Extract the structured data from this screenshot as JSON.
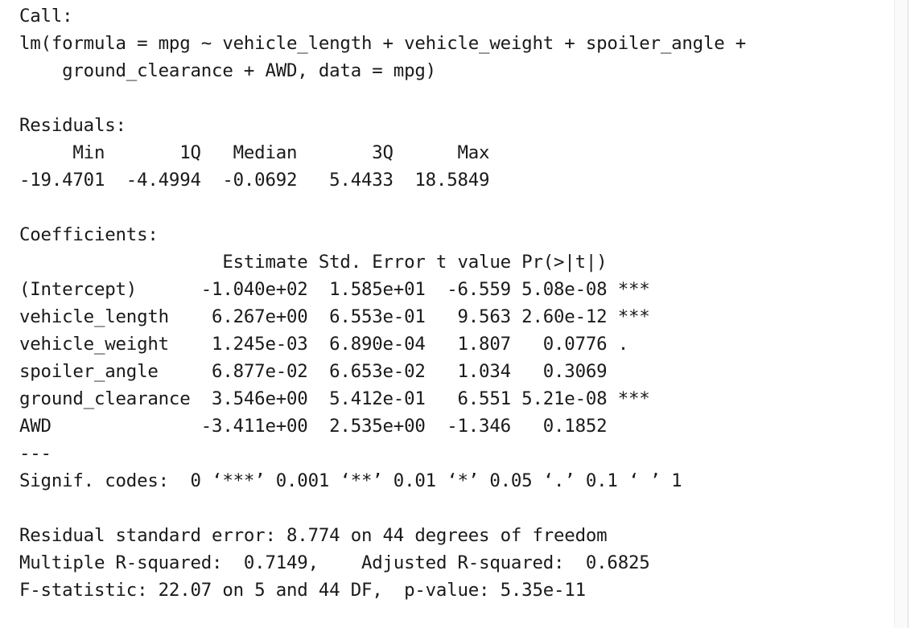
{
  "console": {
    "lines": [
      "Call:",
      "lm(formula = mpg ~ vehicle_length + vehicle_weight + spoiler_angle + ",
      "    ground_clearance + AWD, data = mpg)",
      "",
      "Residuals:",
      "     Min       1Q   Median       3Q      Max ",
      "-19.4701  -4.4994  -0.0692   5.4433  18.5849 ",
      "",
      "Coefficients:",
      "                   Estimate Std. Error t value Pr(>|t|)    ",
      "(Intercept)      -1.040e+02  1.585e+01  -6.559 5.08e-08 ***",
      "vehicle_length    6.267e+00  6.553e-01   9.563 2.60e-12 ***",
      "vehicle_weight    1.245e-03  6.890e-04   1.807   0.0776 .  ",
      "spoiler_angle     6.877e-02  6.653e-02   1.034   0.3069    ",
      "ground_clearance  3.546e+00  5.412e-01   6.551 5.21e-08 ***",
      "AWD              -3.411e+00  2.535e+00  -1.346   0.1852    ",
      "---",
      "Signif. codes:  0 ‘***’ 0.001 ‘**’ 0.01 ‘*’ 0.05 ‘.’ 0.1 ‘ ’ 1",
      "",
      "Residual standard error: 8.774 on 44 degrees of freedom",
      "Multiple R-squared:  0.7149,\tAdjusted R-squared:  0.6825 ",
      "F-statistic: 22.07 on 5 and 44 DF,  p-value: 5.35e-11"
    ]
  }
}
